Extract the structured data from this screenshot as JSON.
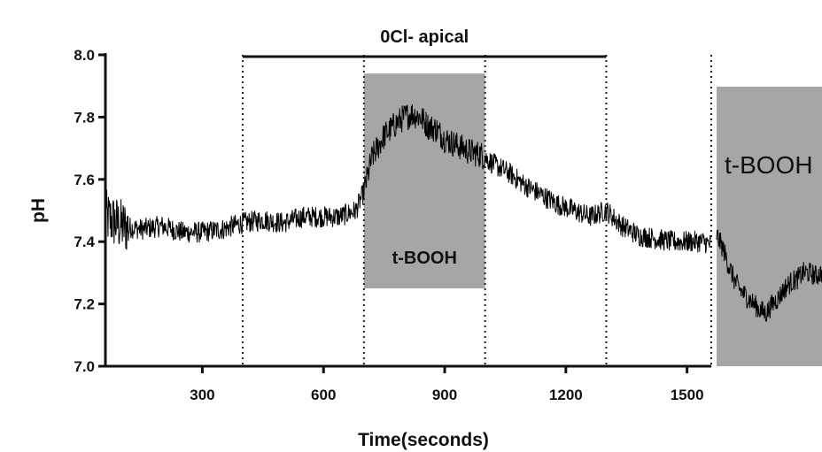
{
  "chart_data": {
    "type": "line",
    "title": "",
    "xlabel": "Time(seconds)",
    "ylabel": "pH",
    "xlim": [
      60,
      1560
    ],
    "ylim": [
      7.0,
      8.0
    ],
    "x_ticks": [
      300,
      600,
      900,
      1200,
      1500
    ],
    "x_tick_labels": [
      "300",
      "600",
      "900",
      "1200",
      "1500"
    ],
    "y_ticks": [
      7.0,
      7.2,
      7.4,
      7.6,
      7.8,
      8.0
    ],
    "y_tick_labels": [
      "7.0",
      "7.2",
      "7.4",
      "7.6",
      "7.8",
      "8.0"
    ],
    "grid": false,
    "series": [
      {
        "color": "#000000",
        "x": [
          60,
          100,
          150,
          200,
          250,
          300,
          350,
          400,
          450,
          500,
          550,
          600,
          640,
          680,
          700,
          720,
          750,
          780,
          800,
          820,
          840,
          860,
          880,
          900,
          930,
          960,
          990,
          1020,
          1060,
          1100,
          1140,
          1180,
          1220,
          1260,
          1300,
          1340,
          1380,
          1420,
          1460,
          1500,
          1540,
          1560
        ],
        "values": [
          7.48,
          7.45,
          7.44,
          7.45,
          7.43,
          7.43,
          7.44,
          7.46,
          7.47,
          7.46,
          7.48,
          7.48,
          7.48,
          7.5,
          7.56,
          7.67,
          7.74,
          7.78,
          7.8,
          7.81,
          7.8,
          7.77,
          7.76,
          7.73,
          7.71,
          7.69,
          7.68,
          7.65,
          7.62,
          7.58,
          7.55,
          7.52,
          7.5,
          7.48,
          7.5,
          7.45,
          7.42,
          7.41,
          7.4,
          7.4,
          7.4,
          7.39
        ]
      }
    ],
    "annotations": {
      "treatment_bar_label": "0Cl- apical",
      "treatment_bar_range": [
        400,
        1300
      ],
      "dotted_lines_x": [
        400,
        700,
        1000,
        1300,
        1560
      ],
      "shaded_regions": [
        {
          "label": "t-BOOH",
          "x_range": [
            700,
            1000
          ],
          "y_range": [
            7.25,
            7.94
          ]
        }
      ]
    },
    "inset": {
      "label": "t-BOOH",
      "x_start": 1560,
      "values": [
        7.42,
        7.38,
        7.32,
        7.27,
        7.24,
        7.22,
        7.2,
        7.18,
        7.17,
        7.2,
        7.22,
        7.25,
        7.27,
        7.28,
        7.3,
        7.3,
        7.29,
        7.3
      ]
    }
  },
  "colors": {
    "shade": "#a6a6a6",
    "trace": "#000000",
    "axis": "#111111"
  }
}
